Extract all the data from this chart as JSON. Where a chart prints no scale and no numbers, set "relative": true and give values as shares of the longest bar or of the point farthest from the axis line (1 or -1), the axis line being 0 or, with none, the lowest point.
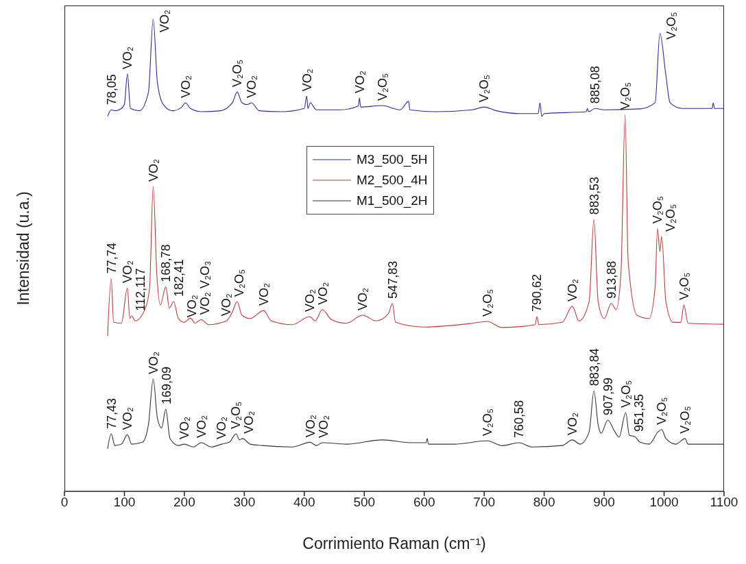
{
  "chart_data": {
    "type": "line",
    "relative": true,
    "xlabel": "Corrimiento Raman (cm⁻¹)",
    "ylabel": "Intensidad (u.a.)",
    "xlim": [
      0,
      1100
    ],
    "xticks": [
      0,
      100,
      200,
      300,
      400,
      500,
      600,
      700,
      800,
      900,
      1000,
      1100
    ],
    "grid": false,
    "legend": "center",
    "marker": "none",
    "line_style": "solid",
    "series": [
      {
        "name": "M3_500_5H",
        "color": "#2a2a9c",
        "x": [
          72,
          78,
          85,
          95,
          100,
          105,
          110,
          125,
          140,
          148,
          155,
          165,
          180,
          195,
          202,
          210,
          230,
          260,
          280,
          288,
          296,
          305,
          312,
          325,
          360,
          400,
          404,
          406,
          410,
          420,
          460,
          490,
          492,
          494,
          530,
          560,
          574,
          576,
          620,
          680,
          700,
          720,
          760,
          790,
          793,
          796,
          800,
          870,
          872,
          874,
          885,
          900,
          960,
          985,
          993,
          1003,
          1010,
          1030,
          1080,
          1082,
          1084,
          1100
        ],
        "values": [
          0.794,
          0.808,
          0.806,
          0.811,
          0.82,
          0.884,
          0.811,
          0.806,
          0.845,
          1.0,
          0.866,
          0.819,
          0.806,
          0.813,
          0.823,
          0.811,
          0.804,
          0.806,
          0.823,
          0.846,
          0.823,
          0.819,
          0.823,
          0.806,
          0.804,
          0.811,
          0.837,
          0.811,
          0.823,
          0.808,
          0.808,
          0.816,
          0.833,
          0.814,
          0.817,
          0.808,
          0.826,
          0.808,
          0.804,
          0.808,
          0.814,
          0.806,
          0.8,
          0.8,
          0.823,
          0.794,
          0.8,
          0.804,
          0.811,
          0.804,
          0.811,
          0.808,
          0.81,
          0.823,
          0.97,
          0.881,
          0.823,
          0.811,
          0.811,
          0.823,
          0.811,
          0.811
        ]
      },
      {
        "name": "M2_500_4H",
        "color": "#c0393b",
        "x": [
          72,
          78,
          82,
          95,
          105,
          109,
          112,
          118,
          135,
          142,
          148,
          154,
          160,
          169,
          175,
          182,
          190,
          200,
          210,
          218,
          228,
          240,
          270,
          280,
          288,
          296,
          310,
          332,
          345,
          380,
          409,
          418,
          430,
          445,
          470,
          497,
          520,
          540,
          547,
          552,
          600,
          680,
          705,
          730,
          785,
          788,
          791,
          830,
          847,
          858,
          875,
          883,
          890,
          900,
          912,
          920,
          928,
          935,
          940,
          955,
          975,
          985,
          989,
          993,
          996,
          1003,
          1015,
          1028,
          1033,
          1040,
          1100
        ],
        "values": [
          0.329,
          0.451,
          0.358,
          0.356,
          0.431,
          0.366,
          0.372,
          0.361,
          0.388,
          0.431,
          0.646,
          0.46,
          0.395,
          0.433,
          0.388,
          0.402,
          0.366,
          0.358,
          0.367,
          0.356,
          0.364,
          0.353,
          0.361,
          0.38,
          0.402,
          0.373,
          0.366,
          0.383,
          0.361,
          0.353,
          0.37,
          0.361,
          0.385,
          0.364,
          0.356,
          0.373,
          0.361,
          0.376,
          0.398,
          0.358,
          0.348,
          0.356,
          0.36,
          0.347,
          0.353,
          0.37,
          0.353,
          0.358,
          0.392,
          0.361,
          0.402,
          0.576,
          0.402,
          0.366,
          0.398,
          0.385,
          0.46,
          0.798,
          0.489,
          0.373,
          0.366,
          0.431,
          0.557,
          0.508,
          0.54,
          0.402,
          0.358,
          0.358,
          0.395,
          0.356,
          0.354
        ]
      },
      {
        "name": "M1_500_2H",
        "color": "#333333",
        "x": [
          72,
          78,
          84,
          95,
          105,
          112,
          130,
          140,
          148,
          155,
          162,
          169,
          176,
          190,
          200,
          215,
          228,
          245,
          262,
          275,
          286,
          292,
          297,
          310,
          330,
          380,
          410,
          420,
          430,
          470,
          530,
          580,
          603,
          605,
          607,
          650,
          705,
          730,
          758,
          780,
          830,
          847,
          860,
          875,
          883,
          890,
          895,
          906,
          918,
          925,
          936,
          942,
          951,
          960,
          975,
          990,
          996,
          1003,
          1020,
          1035,
          1040,
          1100
        ],
        "values": [
          0.09,
          0.122,
          0.097,
          0.1,
          0.12,
          0.1,
          0.104,
          0.141,
          0.238,
          0.155,
          0.134,
          0.174,
          0.112,
          0.097,
          0.1,
          0.094,
          0.103,
          0.094,
          0.1,
          0.104,
          0.122,
          0.109,
          0.112,
          0.1,
          0.097,
          0.094,
          0.104,
          0.097,
          0.103,
          0.1,
          0.109,
          0.103,
          0.103,
          0.112,
          0.1,
          0.1,
          0.107,
          0.097,
          0.103,
          0.094,
          0.097,
          0.109,
          0.1,
          0.126,
          0.213,
          0.141,
          0.123,
          0.151,
          0.126,
          0.115,
          0.167,
          0.119,
          0.116,
          0.104,
          0.1,
          0.126,
          0.131,
          0.112,
          0.1,
          0.112,
          0.1,
          0.1
        ]
      }
    ],
    "annotations": [
      {
        "text": "78,05",
        "x": 78,
        "y": 0.808
      },
      {
        "text": "VO₂",
        "x": 105,
        "y": 0.884
      },
      {
        "text": "VO₂",
        "x": 148,
        "y": 1.0
      },
      {
        "text": "VO₂",
        "x": 202,
        "y": 0.823
      },
      {
        "text": "V₂O₅",
        "x": 288,
        "y": 0.846
      },
      {
        "text": "VO₂",
        "x": 312,
        "y": 0.823
      },
      {
        "text": "VO₂",
        "x": 404,
        "y": 0.837
      },
      {
        "text": "VO₂",
        "x": 492,
        "y": 0.833
      },
      {
        "text": "V₂O₅",
        "x": 530,
        "y": 0.817
      },
      {
        "text": "V₂O₅",
        "x": 700,
        "y": 0.814
      },
      {
        "text": "885,08",
        "x": 885,
        "y": 0.811
      },
      {
        "text": "V₂O₅",
        "x": 993,
        "y": 0.97
      },
      {
        "text": "77,74",
        "x": 78,
        "y": 0.451
      },
      {
        "text": "VO₂",
        "x": 105,
        "y": 0.431
      },
      {
        "text": "112,117",
        "x": 112,
        "y": 0.372
      },
      {
        "text": "VO₂",
        "x": 148,
        "y": 0.646
      },
      {
        "text": "168,78",
        "x": 169,
        "y": 0.433
      },
      {
        "text": "182,41",
        "x": 182,
        "y": 0.402
      },
      {
        "text": "VO₂",
        "x": 200,
        "y": 0.358
      },
      {
        "text": "VO₂",
        "x": 228,
        "y": 0.364
      },
      {
        "text": "V₂O₃",
        "x": 228,
        "y": 0.364
      },
      {
        "text": "VO₂",
        "x": 270,
        "y": 0.361
      },
      {
        "text": "V₂O₅",
        "x": 288,
        "y": 0.402
      },
      {
        "text": "VO₂",
        "x": 332,
        "y": 0.383
      },
      {
        "text": "VO₂",
        "x": 409,
        "y": 0.37
      },
      {
        "text": "VO₂",
        "x": 430,
        "y": 0.385
      },
      {
        "text": "VO₂",
        "x": 497,
        "y": 0.373
      },
      {
        "text": "547,83",
        "x": 547,
        "y": 0.398
      },
      {
        "text": "V₂O₅",
        "x": 705,
        "y": 0.36
      },
      {
        "text": "790,62",
        "x": 788,
        "y": 0.37
      },
      {
        "text": "VO₂",
        "x": 847,
        "y": 0.392
      },
      {
        "text": "883,53",
        "x": 883,
        "y": 0.576
      },
      {
        "text": "913,88",
        "x": 912,
        "y": 0.398
      },
      {
        "text": "V₂O₅",
        "x": 935,
        "y": 0.798
      },
      {
        "text": "V₂O₅",
        "x": 989,
        "y": 0.557
      },
      {
        "text": "V₂O₅",
        "x": 996,
        "y": 0.54
      },
      {
        "text": "V₂O₅",
        "x": 1033,
        "y": 0.395
      },
      {
        "text": "77,43",
        "x": 78,
        "y": 0.122
      },
      {
        "text": "VO₂",
        "x": 105,
        "y": 0.12
      },
      {
        "text": "VO₂",
        "x": 148,
        "y": 0.238
      },
      {
        "text": "169,09",
        "x": 169,
        "y": 0.174
      },
      {
        "text": "VO₂",
        "x": 200,
        "y": 0.1
      },
      {
        "text": "VO₂",
        "x": 228,
        "y": 0.103
      },
      {
        "text": "VO₂",
        "x": 262,
        "y": 0.1
      },
      {
        "text": "V₂O₅",
        "x": 286,
        "y": 0.122
      },
      {
        "text": "VO₂",
        "x": 297,
        "y": 0.112
      },
      {
        "text": "VO₂",
        "x": 410,
        "y": 0.104
      },
      {
        "text": "VO₂",
        "x": 430,
        "y": 0.103
      },
      {
        "text": "V₂O₅",
        "x": 705,
        "y": 0.107
      },
      {
        "text": "760,58",
        "x": 758,
        "y": 0.103
      },
      {
        "text": "VO₂",
        "x": 847,
        "y": 0.109
      },
      {
        "text": "883,84",
        "x": 883,
        "y": 0.213
      },
      {
        "text": "907,99",
        "x": 906,
        "y": 0.151
      },
      {
        "text": "V₂O₅",
        "x": 936,
        "y": 0.167
      },
      {
        "text": "951,35",
        "x": 951,
        "y": 0.116
      },
      {
        "text": "V₂O₅",
        "x": 996,
        "y": 0.131
      },
      {
        "text": "V₂O₅",
        "x": 1035,
        "y": 0.112
      }
    ]
  }
}
